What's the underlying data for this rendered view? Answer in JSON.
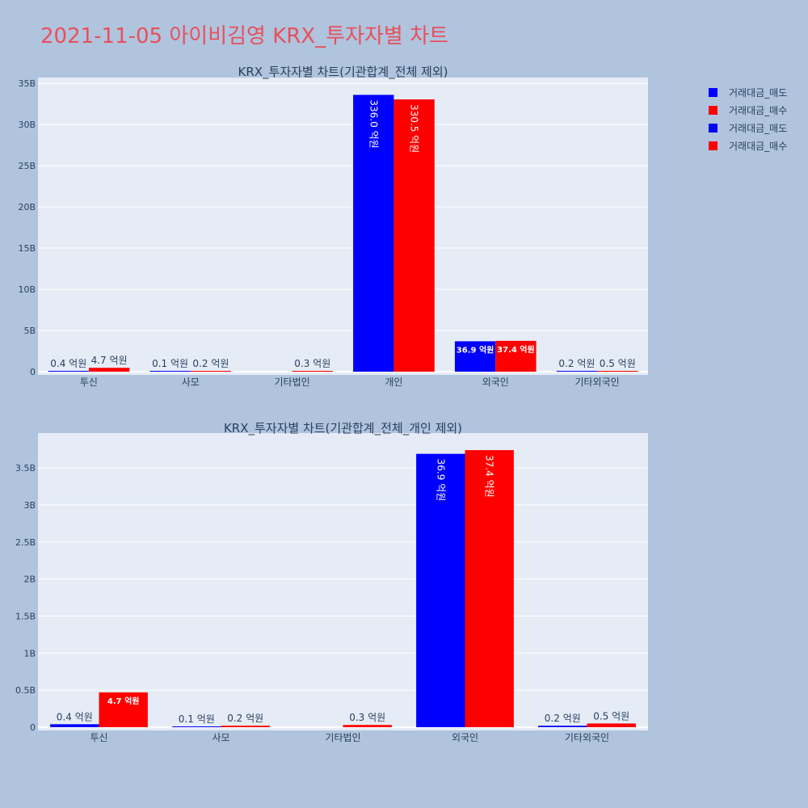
{
  "page": {
    "title": "2021-11-05 아이비김영 KRX_투자자별 차트"
  },
  "legend": {
    "placement": "top-right",
    "items": [
      {
        "label": "거래대금_매도",
        "color": "#0000ff"
      },
      {
        "label": "거래대금_매수",
        "color": "#ff0000"
      },
      {
        "label": "거래대금_매도",
        "color": "#0000ff"
      },
      {
        "label": "거래대금_매수",
        "color": "#ff0000"
      }
    ]
  },
  "colors": {
    "plot_bg": "#e5ecf6",
    "page_bg": "#b0c4de",
    "grid": "#ffffff",
    "axis_text": "#2a3f5f",
    "title_color": "#e8505b",
    "sell": "#0000ff",
    "buy": "#ff0000"
  },
  "chart_data": [
    {
      "type": "bar",
      "title": "KRX_투자자별 차트(기관합계_전체 제외)",
      "categories": [
        "투신",
        "사모",
        "기타법인",
        "개인",
        "외국인",
        "기타외국인"
      ],
      "series": [
        {
          "name": "거래대금_매도",
          "color": "#0000ff",
          "values": [
            40000000,
            10000000,
            0,
            33600000000,
            3690000000,
            20000000
          ],
          "labels": [
            "0.4 억원",
            "0.1 억원",
            "",
            "336.0 억원",
            "36.9 억원",
            "0.2 억원"
          ]
        },
        {
          "name": "거래대금_매수",
          "color": "#ff0000",
          "values": [
            470000000,
            20000000,
            30000000,
            33050000000,
            3740000000,
            50000000
          ],
          "labels": [
            "4.7 억원",
            "0.2 억원",
            "0.3 억원",
            "330.5 억원",
            "37.4 억원",
            "0.5 억원"
          ]
        }
      ],
      "ylim": [
        0,
        35700000000
      ],
      "yticks": [
        0,
        5000000000,
        10000000000,
        15000000000,
        20000000000,
        25000000000,
        30000000000,
        35000000000
      ],
      "ytick_labels": [
        "0",
        "5B",
        "10B",
        "15B",
        "20B",
        "25B",
        "30B",
        "35B"
      ],
      "grid": true
    },
    {
      "type": "bar",
      "title": "KRX_투자자별 차트(기관합계_전체_개인 제외)",
      "categories": [
        "투신",
        "사모",
        "기타법인",
        "외국인",
        "기타외국인"
      ],
      "series": [
        {
          "name": "거래대금_매도",
          "color": "#0000ff",
          "values": [
            40000000,
            10000000,
            0,
            3690000000,
            20000000
          ],
          "labels": [
            "0.4 억원",
            "0.1 억원",
            "",
            "36.9 억원",
            "0.2 억원"
          ]
        },
        {
          "name": "거래대금_매수",
          "color": "#ff0000",
          "values": [
            470000000,
            20000000,
            30000000,
            3740000000,
            50000000
          ],
          "labels": [
            "4.7 억원",
            "0.2 억원",
            "0.3 억원",
            "37.4 억원",
            "0.5 억원"
          ]
        }
      ],
      "ylim": [
        0,
        3970000000
      ],
      "yticks": [
        0,
        500000000,
        1000000000,
        1500000000,
        2000000000,
        2500000000,
        3000000000,
        3500000000
      ],
      "ytick_labels": [
        "0",
        "0.5B",
        "1B",
        "1.5B",
        "2B",
        "2.5B",
        "3B",
        "3.5B"
      ],
      "grid": true
    }
  ]
}
